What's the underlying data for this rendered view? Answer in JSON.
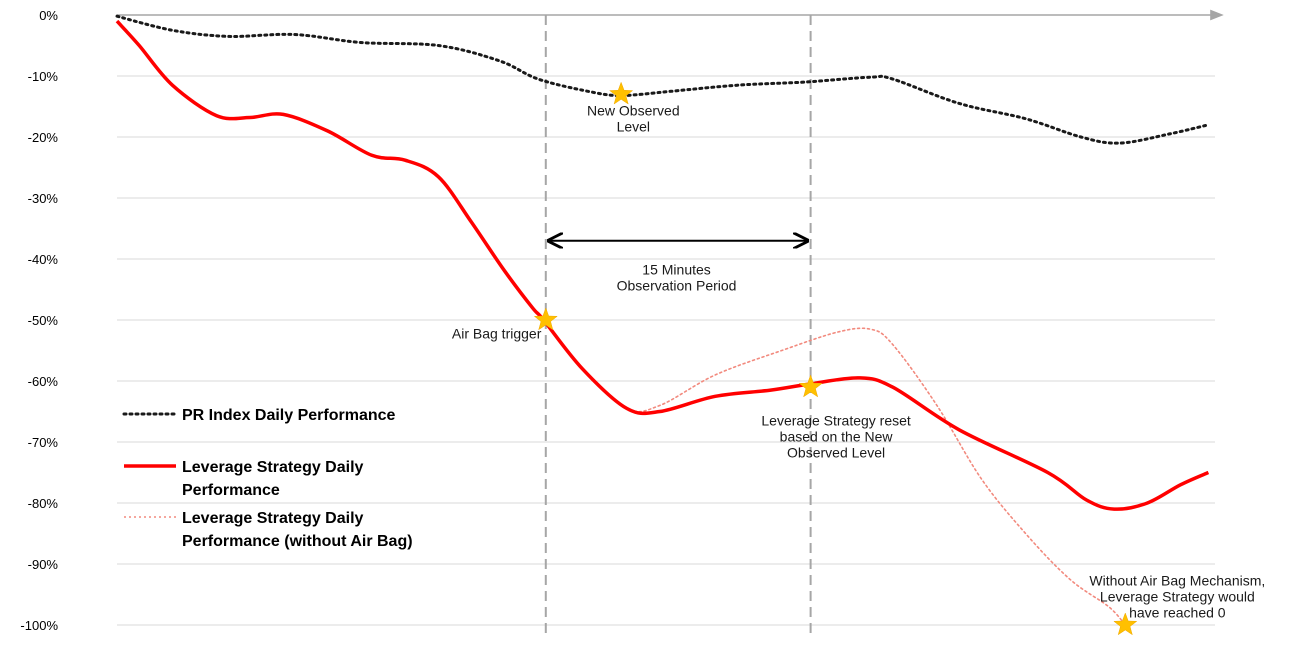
{
  "chart_data": {
    "type": "line",
    "title": "",
    "xlabel": "",
    "ylabel": "",
    "ylim": [
      -100,
      0
    ],
    "xlim": [
      0,
      1
    ],
    "grid": "horizontal",
    "yticks": [
      "0%",
      "-10%",
      "-20%",
      "-30%",
      "-40%",
      "-50%",
      "-60%",
      "-70%",
      "-80%",
      "-90%",
      "-100%"
    ],
    "ytick_values": [
      0,
      -10,
      -20,
      -30,
      -40,
      -50,
      -60,
      -70,
      -80,
      -90,
      -100
    ],
    "legend_position": "bottom-left",
    "series": [
      {
        "name": "PR Index Daily Performance",
        "style": "dotted",
        "color": "#1a1a1a",
        "points": [
          [
            0.0,
            -0.2
          ],
          [
            0.05,
            -2.5
          ],
          [
            0.1,
            -3.5
          ],
          [
            0.16,
            -3.2
          ],
          [
            0.22,
            -4.5
          ],
          [
            0.29,
            -5.0
          ],
          [
            0.345,
            -7.5
          ],
          [
            0.38,
            -10.5
          ],
          [
            0.425,
            -12.5
          ],
          [
            0.455,
            -13.2
          ],
          [
            0.5,
            -12.5
          ],
          [
            0.56,
            -11.5
          ],
          [
            0.62,
            -11.0
          ],
          [
            0.68,
            -10.2
          ],
          [
            0.7,
            -10.5
          ],
          [
            0.76,
            -14.5
          ],
          [
            0.82,
            -17.0
          ],
          [
            0.87,
            -20.0
          ],
          [
            0.905,
            -21.0
          ],
          [
            0.95,
            -19.5
          ],
          [
            0.985,
            -18.0
          ]
        ]
      },
      {
        "name": "Leverage Strategy Daily Performance",
        "style": "solid",
        "color": "#ff0000",
        "points": [
          [
            0.0,
            -1.0
          ],
          [
            0.02,
            -5.0
          ],
          [
            0.05,
            -11.5
          ],
          [
            0.09,
            -16.5
          ],
          [
            0.12,
            -16.8
          ],
          [
            0.15,
            -16.3
          ],
          [
            0.19,
            -19.0
          ],
          [
            0.23,
            -23.0
          ],
          [
            0.26,
            -23.8
          ],
          [
            0.29,
            -26.5
          ],
          [
            0.32,
            -34.0
          ],
          [
            0.35,
            -42.0
          ],
          [
            0.375,
            -48.0
          ],
          [
            0.385,
            -50.0
          ],
          [
            0.42,
            -58.0
          ],
          [
            0.46,
            -64.5
          ],
          [
            0.49,
            -65.0
          ],
          [
            0.54,
            -62.5
          ],
          [
            0.59,
            -61.5
          ],
          [
            0.625,
            -60.5
          ],
          [
            0.67,
            -59.5
          ],
          [
            0.7,
            -61.0
          ],
          [
            0.76,
            -68.0
          ],
          [
            0.84,
            -75.0
          ],
          [
            0.875,
            -79.5
          ],
          [
            0.9,
            -81.0
          ],
          [
            0.93,
            -80.0
          ],
          [
            0.96,
            -77.0
          ],
          [
            0.985,
            -75.0
          ]
        ]
      },
      {
        "name": "Leverage Strategy Daily Performance (without Air Bag)",
        "style": "dotted",
        "color": "#f28a7e",
        "points": [
          [
            0.385,
            -50.0
          ],
          [
            0.42,
            -58.0
          ],
          [
            0.46,
            -64.5
          ],
          [
            0.49,
            -64.0
          ],
          [
            0.54,
            -59.0
          ],
          [
            0.6,
            -55.0
          ],
          [
            0.65,
            -52.0
          ],
          [
            0.68,
            -51.5
          ],
          [
            0.7,
            -54.0
          ],
          [
            0.74,
            -64.0
          ],
          [
            0.78,
            -76.0
          ],
          [
            0.82,
            -85.0
          ],
          [
            0.86,
            -92.5
          ],
          [
            0.895,
            -97.0
          ],
          [
            0.91,
            -100.0
          ]
        ]
      }
    ],
    "markers": [
      {
        "x": 0.455,
        "y": -13.0
      },
      {
        "x": 0.387,
        "y": -50.0
      },
      {
        "x": 0.626,
        "y": -61.0
      },
      {
        "x": 0.91,
        "y": -100.0
      }
    ],
    "vlines": [
      0.387,
      0.626
    ],
    "interval_arrow": {
      "x1": 0.387,
      "x2": 0.626,
      "y": -37.0
    },
    "annotations": [
      {
        "id": "new-observed-level",
        "lines": [
          "New Observed",
          "Level"
        ],
        "x": 0.466,
        "y": -16.5,
        "anchor": "middle"
      },
      {
        "id": "observation-period",
        "lines": [
          "15 Minutes",
          "Observation Period"
        ],
        "x": 0.505,
        "y": -42.5,
        "anchor": "middle"
      },
      {
        "id": "air-bag-trigger",
        "lines": [
          "Air Bag trigger"
        ],
        "x": 0.383,
        "y": -53.0,
        "anchor": "end"
      },
      {
        "id": "reset-note",
        "lines": [
          "Leverage Strategy reset",
          "based on the New",
          "Observed Level"
        ],
        "x": 0.649,
        "y": -67.3,
        "anchor": "middle"
      },
      {
        "id": "without-airbag-note",
        "lines": [
          "Without Air Bag Mechanism,",
          "Leverage Strategy would",
          "have reached 0"
        ],
        "x": 0.957,
        "y": -93.5,
        "anchor": "middle"
      }
    ],
    "colors": {
      "index": "#1a1a1a",
      "leverage": "#ff0000",
      "leverage_no_airbag": "#f28a7e",
      "star": "#ffc000",
      "gridline": "#d9d9d9",
      "vline": "#a6a6a6"
    }
  }
}
